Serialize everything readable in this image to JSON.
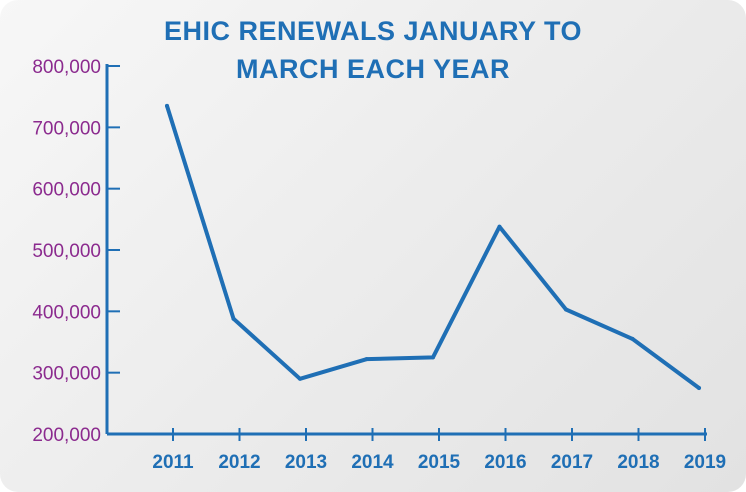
{
  "colors": {
    "title": "#1f6fb5",
    "line": "#1f6fb5",
    "axis": "#1f6fb5",
    "y_tick_labels": "#8b2a8e",
    "x_tick_labels": "#1f6fb5"
  },
  "chart_data": {
    "type": "line",
    "title_lines": [
      "EHIC RENEWALS JANUARY TO",
      "MARCH EACH YEAR"
    ],
    "xlabel": "",
    "ylabel": "",
    "x": [
      "2011",
      "2012",
      "2013",
      "2014",
      "2015",
      "2016",
      "2017",
      "2018",
      "2019"
    ],
    "series": [
      {
        "values": [
          735000,
          388000,
          290000,
          322000,
          325000,
          538000,
          403000,
          355000,
          275000
        ]
      }
    ],
    "y_ticks": [
      "800,000",
      "700,000",
      "600,000",
      "500,000",
      "400,000",
      "300,000",
      "200,000"
    ],
    "y_tick_values": [
      800000,
      700000,
      600000,
      500000,
      400000,
      300000,
      200000
    ],
    "ylim": [
      200000,
      800000
    ],
    "grid": false,
    "legend": "none"
  }
}
